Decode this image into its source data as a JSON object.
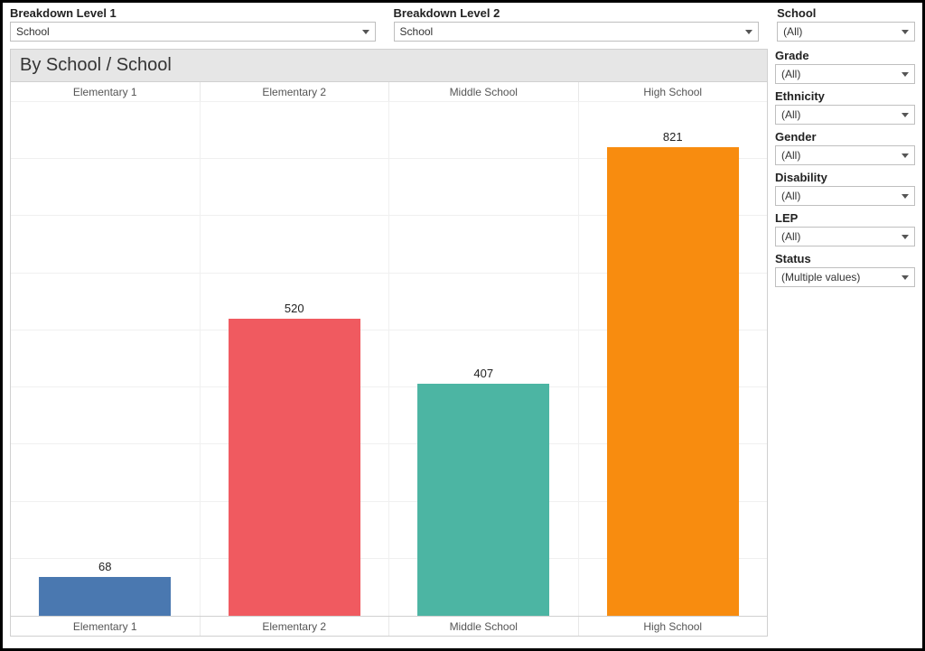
{
  "breakdown1": {
    "label": "Breakdown Level 1",
    "value": "School"
  },
  "breakdown2": {
    "label": "Breakdown Level 2",
    "value": "School"
  },
  "filters": [
    {
      "label": "School",
      "value": "(All)"
    },
    {
      "label": "Grade",
      "value": "(All)"
    },
    {
      "label": "Ethnicity",
      "value": "(All)"
    },
    {
      "label": "Gender",
      "value": "(All)"
    },
    {
      "label": "Disability",
      "value": "(All)"
    },
    {
      "label": "LEP",
      "value": "(All)"
    },
    {
      "label": "Status",
      "value": "(Multiple values)"
    }
  ],
  "chart": {
    "type": "bar",
    "title": "By School / School",
    "categories": [
      "Elementary 1",
      "Elementary 2",
      "Middle School",
      "High School"
    ],
    "values": [
      68,
      520,
      407,
      821
    ],
    "bar_colors": [
      "#4a78b0",
      "#f05a60",
      "#4cb5a3",
      "#f88c0f"
    ],
    "y_max": 900,
    "grid_steps": 9,
    "bar_width_pct": 70,
    "title_fontsize": 20,
    "header_fontsize": 12,
    "value_label_fontsize": 13,
    "background_color": "#ffffff",
    "grid_color": "#f0f0f0"
  }
}
